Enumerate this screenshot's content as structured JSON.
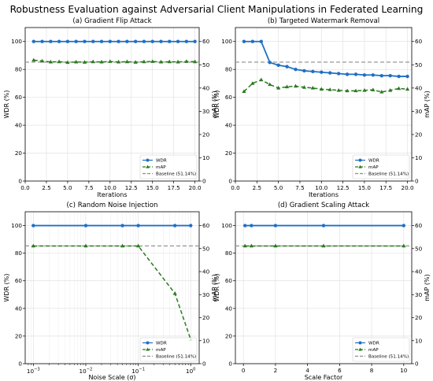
{
  "suptitle": "Robustness Evaluation against Adversarial Client Manipulations in Federated Learning",
  "colors": {
    "wdr": "#1f6fc5",
    "map": "#2a7a1e",
    "baseline": "#8c8c8c"
  },
  "chart_data": [
    {
      "type": "line",
      "title": "(a) Gradient Flip Attack",
      "xlabel": "Iterations",
      "ylabel": "WDR (%)",
      "y2label": "mAP (%)",
      "xscale": "linear",
      "xlim": [
        0,
        20.5
      ],
      "ylim": [
        0,
        110
      ],
      "y2lim": [
        0,
        66
      ],
      "xticks": [
        0,
        2.5,
        5,
        7.5,
        10,
        12.5,
        15,
        17.5,
        20
      ],
      "xtick_labels": [
        "0.0",
        "2.5",
        "5.0",
        "7.5",
        "10.0",
        "12.5",
        "15.0",
        "17.5",
        "20.0"
      ],
      "yticks": [
        0,
        20,
        40,
        60,
        80,
        100
      ],
      "y2ticks": [
        0,
        10,
        20,
        30,
        40,
        50,
        60
      ],
      "grid": true,
      "legend": "lower-right",
      "baseline": {
        "name": "Baseline (51.14%)",
        "value": 51.14,
        "axis": "y2"
      },
      "series": [
        {
          "name": "WDR",
          "axis": "y",
          "marker": "circle",
          "style": "solid",
          "x": [
            1,
            2,
            3,
            4,
            5,
            6,
            7,
            8,
            9,
            10,
            11,
            12,
            13,
            14,
            15,
            16,
            17,
            18,
            19,
            20
          ],
          "values": [
            100,
            100,
            100,
            100,
            100,
            100,
            100,
            100,
            100,
            100,
            100,
            100,
            100,
            100,
            100,
            100,
            100,
            100,
            100,
            100
          ]
        },
        {
          "name": "mAP",
          "axis": "y2",
          "marker": "triangle",
          "style": "dashed",
          "x": [
            1,
            2,
            3,
            4,
            5,
            6,
            7,
            8,
            9,
            10,
            11,
            12,
            13,
            14,
            15,
            16,
            17,
            18,
            19,
            20
          ],
          "values": [
            52.0,
            51.6,
            51.2,
            51.3,
            51.0,
            51.2,
            51.1,
            51.3,
            51.2,
            51.4,
            51.2,
            51.3,
            51.1,
            51.3,
            51.4,
            51.2,
            51.3,
            51.2,
            51.4,
            51.3
          ]
        }
      ]
    },
    {
      "type": "line",
      "title": "(b) Targeted Watermark Removal",
      "xlabel": "Iterations",
      "ylabel": "WDR (%)",
      "y2label": "mAP (%)",
      "xscale": "linear",
      "xlim": [
        0,
        20.5
      ],
      "ylim": [
        0,
        110
      ],
      "y2lim": [
        0,
        66
      ],
      "xticks": [
        0,
        2.5,
        5,
        7.5,
        10,
        12.5,
        15,
        17.5,
        20
      ],
      "xtick_labels": [
        "0.0",
        "2.5",
        "5.0",
        "7.5",
        "10.0",
        "12.5",
        "15.0",
        "17.5",
        "20.0"
      ],
      "yticks": [
        0,
        20,
        40,
        60,
        80,
        100
      ],
      "y2ticks": [
        0,
        10,
        20,
        30,
        40,
        50,
        60
      ],
      "grid": true,
      "legend": "lower-right",
      "baseline": {
        "name": "Baseline (51.14%)",
        "value": 51.14,
        "axis": "y2"
      },
      "series": [
        {
          "name": "WDR",
          "axis": "y",
          "marker": "circle",
          "style": "solid",
          "x": [
            1,
            2,
            3,
            4,
            5,
            6,
            7,
            8,
            9,
            10,
            11,
            12,
            13,
            14,
            15,
            16,
            17,
            18,
            19,
            20
          ],
          "values": [
            100,
            100,
            100,
            85,
            83,
            82,
            80,
            79,
            78.5,
            78,
            77.5,
            77,
            76.5,
            76.5,
            76,
            76,
            75.5,
            75.5,
            75,
            75
          ]
        },
        {
          "name": "mAP",
          "axis": "y2",
          "marker": "triangle",
          "style": "dashed",
          "x": [
            1,
            2,
            3,
            4,
            5,
            6,
            7,
            8,
            9,
            10,
            11,
            12,
            13,
            14,
            15,
            16,
            17,
            18,
            19,
            20
          ],
          "values": [
            38.5,
            42,
            43.5,
            41.5,
            40,
            40.5,
            40.8,
            40.3,
            40,
            39.5,
            39.3,
            39.0,
            38.8,
            38.8,
            39.0,
            39.2,
            38.3,
            39.0,
            39.8,
            39.5
          ]
        }
      ]
    },
    {
      "type": "line",
      "title": "(c) Random Noise Injection",
      "xlabel": "Noise Scale (σ)",
      "ylabel": "WDR (%)",
      "y2label": "mAP (%)",
      "xscale": "log",
      "xlim": [
        0.0007,
        1.45
      ],
      "ylim": [
        0,
        110
      ],
      "y2lim": [
        0,
        66
      ],
      "xticks": [
        0.001,
        0.01,
        0.1,
        1
      ],
      "xtick_labels": [
        [
          "10",
          "−3"
        ],
        [
          "10",
          "−2"
        ],
        [
          "10",
          "−1"
        ],
        [
          "10",
          "0"
        ]
      ],
      "yticks": [
        0,
        20,
        40,
        60,
        80,
        100
      ],
      "y2ticks": [
        0,
        10,
        20,
        30,
        40,
        50,
        60
      ],
      "grid": true,
      "legend": "lower-right",
      "baseline": {
        "name": "Baseline (51.14%)",
        "value": 51.14,
        "axis": "y2"
      },
      "series": [
        {
          "name": "WDR",
          "axis": "y",
          "marker": "circle",
          "style": "solid",
          "x": [
            0.001,
            0.01,
            0.05,
            0.1,
            0.5,
            1.0
          ],
          "values": [
            100,
            100,
            100,
            100,
            100,
            100
          ]
        },
        {
          "name": "mAP",
          "axis": "y2",
          "marker": "triangle",
          "style": "dashed",
          "x": [
            0.001,
            0.01,
            0.05,
            0.1,
            0.5,
            1.0
          ],
          "values": [
            51.14,
            51.14,
            51.14,
            51.14,
            30.5,
            10.5
          ]
        }
      ]
    },
    {
      "type": "line",
      "title": "(d) Gradient Scaling Attack",
      "xlabel": "Scale Factor",
      "ylabel": "WDR (%)",
      "y2label": "mAP (%)",
      "xscale": "linear",
      "xlim": [
        -0.5,
        10.5
      ],
      "ylim": [
        0,
        110
      ],
      "y2lim": [
        0,
        66
      ],
      "xticks": [
        0,
        2,
        4,
        6,
        8,
        10
      ],
      "xtick_labels": [
        "0",
        "2",
        "4",
        "6",
        "8",
        "10"
      ],
      "yticks": [
        0,
        20,
        40,
        60,
        80,
        100
      ],
      "y2ticks": [
        0,
        10,
        20,
        30,
        40,
        50,
        60
      ],
      "grid": true,
      "legend": "lower-right",
      "baseline": {
        "name": "Baseline (51.14%)",
        "value": 51.14,
        "axis": "y2"
      },
      "series": [
        {
          "name": "WDR",
          "axis": "y",
          "marker": "circle",
          "style": "solid",
          "x": [
            0.1,
            0.5,
            2,
            5,
            10
          ],
          "values": [
            100,
            100,
            100,
            100,
            100
          ]
        },
        {
          "name": "mAP",
          "axis": "y2",
          "marker": "triangle",
          "style": "dashed",
          "x": [
            0.1,
            0.5,
            2,
            5,
            10
          ],
          "values": [
            51.14,
            51.14,
            51.14,
            51.14,
            51.14
          ]
        }
      ]
    }
  ]
}
